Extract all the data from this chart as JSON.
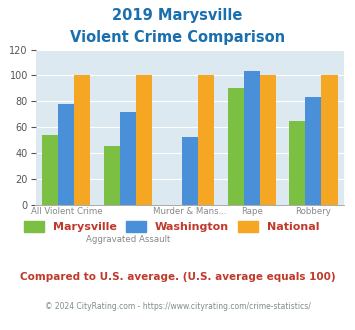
{
  "title_line1": "2019 Marysville",
  "title_line2": "Violent Crime Comparison",
  "categories": [
    "All Violent Crime",
    "Aggravated Assault",
    "Murder & Mans...",
    "Rape",
    "Robbery"
  ],
  "marysville": [
    54,
    45,
    0,
    90,
    65
  ],
  "washington": [
    78,
    72,
    52,
    103,
    83
  ],
  "national": [
    100,
    100,
    100,
    100,
    100
  ],
  "bar_colors": {
    "marysville": "#7bc043",
    "washington": "#4a90d9",
    "national": "#f5a623"
  },
  "ylim": [
    0,
    120
  ],
  "yticks": [
    0,
    20,
    40,
    60,
    80,
    100,
    120
  ],
  "title_color": "#1a6faf",
  "plot_bg": "#dce9f0",
  "legend_labels": [
    "Marysville",
    "Washington",
    "National"
  ],
  "footnote1": "Compared to U.S. average. (U.S. average equals 100)",
  "footnote2": "© 2024 CityRating.com - https://www.cityrating.com/crime-statistics/",
  "footnote1_color": "#c0392b",
  "footnote2_color": "#7f8c8d",
  "bottom_xlabels": [
    "All Violent Crime",
    "",
    "Murder & Mans...",
    "Rape",
    "Robbery"
  ],
  "top_xlabels": [
    "",
    "Aggravated Assault",
    "",
    "",
    ""
  ]
}
